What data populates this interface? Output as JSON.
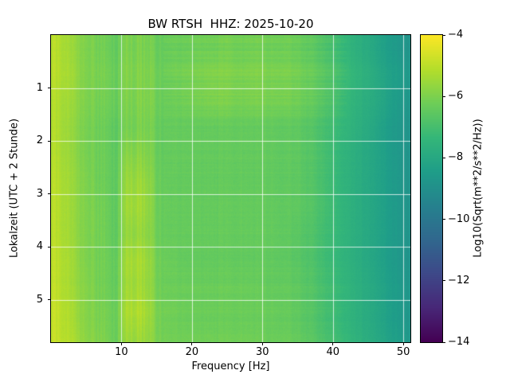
{
  "figure": {
    "background": "#ffffff",
    "text_color": "#000000"
  },
  "chart_data": {
    "type": "heatmap",
    "title": "BW RTSH  HHZ: 2025-10-20",
    "xlabel": "Frequency [Hz]",
    "ylabel": "Lokalzeit (UTC + 2 Stunde)",
    "x_range": [
      0,
      51
    ],
    "x_ticks": [
      10,
      20,
      30,
      40,
      50
    ],
    "x_tick_labels": [
      "10",
      "20",
      "30",
      "40",
      "50"
    ],
    "y_range": [
      0,
      5.8
    ],
    "y_ticks": [
      1,
      2,
      3,
      4,
      5
    ],
    "y_tick_labels": [
      "1",
      "2",
      "3",
      "4",
      "5"
    ],
    "y_axis_direction": "time increases downward",
    "grid": true,
    "grid_color": "rgba(255,255,255,0.75)",
    "colormap": "viridis",
    "colormap_stops": [
      "#440154",
      "#482878",
      "#3e4989",
      "#31688e",
      "#26828e",
      "#1f9e89",
      "#35b779",
      "#6ece58",
      "#b5de2b",
      "#fde725"
    ],
    "colorbar": {
      "label": "Log10(Sqrt(m**2/s**2/Hz))",
      "range": [
        -14,
        -4
      ],
      "ticks": [
        -4,
        -6,
        -8,
        -10,
        -12,
        -14
      ],
      "tick_labels": [
        "−4",
        "−6",
        "−8",
        "−10",
        "−12",
        "−14"
      ]
    },
    "x_centers": [
      1,
      3,
      5,
      7,
      9,
      11,
      13,
      15,
      17,
      19,
      21,
      23,
      25,
      27,
      29,
      31,
      33,
      35,
      37,
      39,
      41,
      43,
      45,
      47,
      49,
      51
    ],
    "y_centers": [
      0.25,
      0.75,
      1.25,
      1.75,
      2.25,
      2.75,
      3.25,
      3.75,
      4.25,
      4.75,
      5.25,
      5.75
    ],
    "values": [
      [
        -5.0,
        -5.6,
        -6.0,
        -6.2,
        -6.3,
        -6.0,
        -6.1,
        -6.3,
        -6.3,
        -6.3,
        -6.2,
        -6.2,
        -6.1,
        -6.2,
        -6.1,
        -6.2,
        -6.2,
        -6.3,
        -6.5,
        -6.8,
        -7.2,
        -7.6,
        -7.9,
        -8.3,
        -8.6,
        -8.9
      ],
      [
        -5.0,
        -5.5,
        -6.0,
        -6.1,
        -6.2,
        -5.9,
        -6.0,
        -6.2,
        -6.2,
        -6.1,
        -6.0,
        -5.9,
        -5.9,
        -6.0,
        -5.9,
        -6.0,
        -6.0,
        -6.1,
        -6.3,
        -6.6,
        -7.0,
        -7.4,
        -7.7,
        -8.1,
        -8.4,
        -8.7
      ],
      [
        -5.1,
        -5.6,
        -6.0,
        -6.2,
        -6.2,
        -6.0,
        -6.0,
        -6.2,
        -6.3,
        -6.2,
        -6.1,
        -6.0,
        -6.0,
        -6.1,
        -6.0,
        -6.1,
        -6.1,
        -6.2,
        -6.4,
        -6.7,
        -7.1,
        -7.5,
        -7.8,
        -8.1,
        -8.5,
        -8.8
      ],
      [
        -5.1,
        -5.7,
        -6.1,
        -6.3,
        -6.4,
        -6.1,
        -6.1,
        -6.3,
        -6.4,
        -6.4,
        -6.4,
        -6.4,
        -6.4,
        -6.4,
        -6.4,
        -6.4,
        -6.5,
        -6.5,
        -6.7,
        -7.0,
        -7.3,
        -7.6,
        -7.9,
        -8.3,
        -8.6,
        -8.9
      ],
      [
        -5.1,
        -5.7,
        -6.1,
        -6.3,
        -6.4,
        -5.8,
        -5.9,
        -6.3,
        -6.4,
        -6.4,
        -6.4,
        -6.4,
        -6.4,
        -6.4,
        -6.4,
        -6.4,
        -6.5,
        -6.5,
        -6.7,
        -7.0,
        -7.4,
        -7.7,
        -8.0,
        -8.3,
        -8.6,
        -8.9
      ],
      [
        -5.0,
        -5.6,
        -6.0,
        -6.3,
        -6.4,
        -5.5,
        -5.6,
        -6.2,
        -6.4,
        -6.4,
        -6.4,
        -6.4,
        -6.4,
        -6.4,
        -6.4,
        -6.4,
        -6.5,
        -6.5,
        -6.7,
        -7.0,
        -7.4,
        -7.7,
        -8.0,
        -8.3,
        -8.6,
        -8.9
      ],
      [
        -5.0,
        -5.6,
        -6.0,
        -6.2,
        -6.4,
        -5.4,
        -5.5,
        -6.2,
        -6.4,
        -6.4,
        -6.4,
        -6.4,
        -6.4,
        -6.4,
        -6.4,
        -6.4,
        -6.5,
        -6.5,
        -6.7,
        -7.0,
        -7.4,
        -7.7,
        -8.0,
        -8.3,
        -8.6,
        -8.9
      ],
      [
        -5.0,
        -5.6,
        -6.0,
        -6.2,
        -6.4,
        -5.6,
        -5.7,
        -6.2,
        -6.4,
        -6.4,
        -6.4,
        -6.4,
        -6.4,
        -6.4,
        -6.4,
        -6.4,
        -6.5,
        -6.6,
        -6.8,
        -7.1,
        -7.4,
        -7.7,
        -8.0,
        -8.3,
        -8.6,
        -8.9
      ],
      [
        -4.9,
        -5.5,
        -6.0,
        -6.2,
        -6.3,
        -5.3,
        -5.4,
        -6.1,
        -6.3,
        -6.4,
        -6.4,
        -6.4,
        -6.4,
        -6.4,
        -6.4,
        -6.4,
        -6.5,
        -6.6,
        -6.8,
        -7.1,
        -7.4,
        -7.7,
        -8.0,
        -8.3,
        -8.6,
        -8.9
      ],
      [
        -4.9,
        -5.5,
        -5.9,
        -6.2,
        -6.3,
        -5.4,
        -5.5,
        -6.1,
        -6.3,
        -6.3,
        -6.3,
        -6.3,
        -6.3,
        -6.3,
        -6.3,
        -6.4,
        -6.4,
        -6.5,
        -6.7,
        -7.0,
        -7.3,
        -7.6,
        -7.9,
        -8.2,
        -8.5,
        -8.8
      ],
      [
        -4.8,
        -5.4,
        -5.9,
        -6.1,
        -6.2,
        -5.2,
        -5.3,
        -6.0,
        -6.2,
        -6.3,
        -6.3,
        -6.3,
        -6.3,
        -6.3,
        -6.3,
        -6.3,
        -6.4,
        -6.5,
        -6.7,
        -7.0,
        -7.3,
        -7.6,
        -7.9,
        -8.2,
        -8.5,
        -8.8
      ],
      [
        -4.8,
        -5.3,
        -5.8,
        -6.0,
        -6.2,
        -5.5,
        -5.6,
        -6.0,
        -6.2,
        -6.2,
        -6.2,
        -6.2,
        -6.2,
        -6.2,
        -6.2,
        -6.3,
        -6.3,
        -6.4,
        -6.6,
        -6.9,
        -7.2,
        -7.5,
        -7.8,
        -8.1,
        -8.4,
        -8.7
      ]
    ]
  }
}
